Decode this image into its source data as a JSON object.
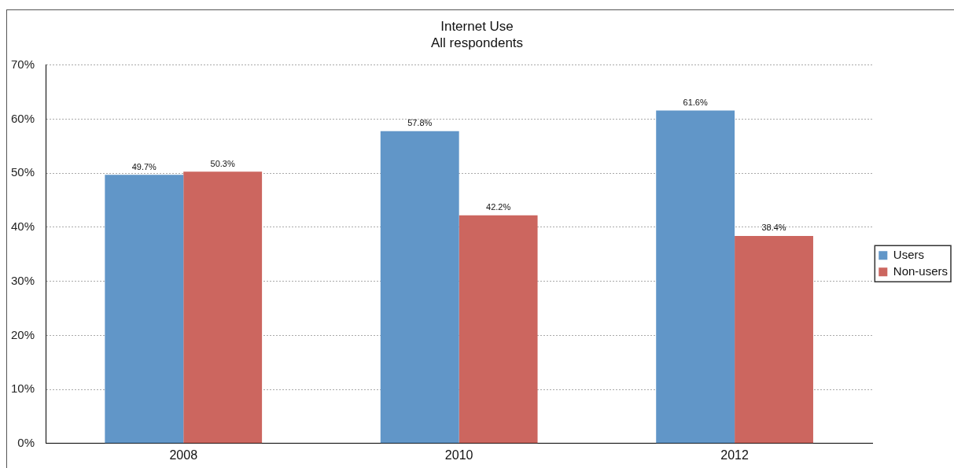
{
  "chart_data": {
    "type": "bar",
    "title": "Internet Use",
    "subtitle": "All respondents",
    "categories": [
      "2008",
      "2010",
      "2012"
    ],
    "series": [
      {
        "name": "Users",
        "color": "#6196c8",
        "values": [
          49.7,
          57.8,
          61.6
        ],
        "value_labels": [
          "49.7%",
          "57.8%",
          "61.6%"
        ]
      },
      {
        "name": "Non-users",
        "color": "#cc665f",
        "values": [
          50.3,
          42.2,
          38.4
        ],
        "value_labels": [
          "50.3%",
          "42.2%",
          "38.4%"
        ]
      }
    ],
    "ylim": [
      0,
      70
    ],
    "yticks": [
      {
        "value": 0,
        "label": "0%"
      },
      {
        "value": 10,
        "label": "10%"
      },
      {
        "value": 20,
        "label": "20%"
      },
      {
        "value": 30,
        "label": "30%"
      },
      {
        "value": 40,
        "label": "40%"
      },
      {
        "value": 50,
        "label": "50%"
      },
      {
        "value": 60,
        "label": "60%"
      },
      {
        "value": 70,
        "label": "70%"
      }
    ],
    "grid": "y",
    "legend": "right"
  }
}
